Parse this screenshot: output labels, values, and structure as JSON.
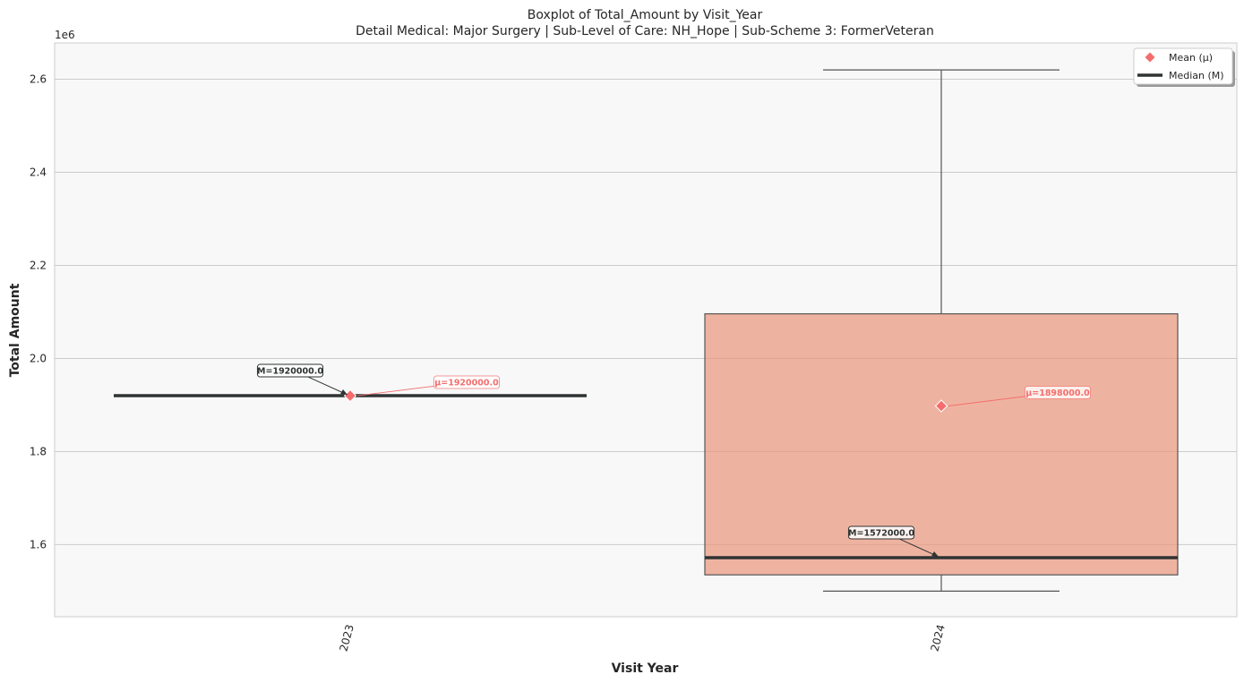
{
  "chart_data": {
    "type": "boxplot",
    "title": "Boxplot of Total_Amount by Visit_Year",
    "subtitle": "Detail Medical: Major Surgery | Sub-Level of Care: NH_Hope | Sub-Scheme 3: FormerVeteran",
    "xlabel": "Visit Year",
    "ylabel": "Total Amount",
    "y_offset_label": "1e6",
    "y_scale": 1000000,
    "ylim": [
      1445000,
      2678000
    ],
    "yticks": [
      1.6,
      1.8,
      2.0,
      2.2,
      2.4,
      2.6
    ],
    "grid": true,
    "legend_position": "top-right",
    "categories": [
      "2023",
      "2024"
    ],
    "boxes": [
      {
        "category": "2023",
        "min": 1920000,
        "q1": 1920000,
        "median": 1920000,
        "q3": 1920000,
        "max": 1920000,
        "mean": 1920000,
        "median_label": "M=1920000.0",
        "mean_label": "μ=1920000.0",
        "fill_color": "#eaeaea"
      },
      {
        "category": "2024",
        "min": 1500000,
        "q1": 1535000,
        "median": 1572000,
        "q3": 2096000,
        "max": 2620000,
        "mean": 1898000,
        "median_label": "M=1572000.0",
        "mean_label": "μ=1898000.0",
        "fill_color": "#e9967a"
      }
    ],
    "legend": [
      {
        "label": "Mean (μ)",
        "marker": "diamond",
        "color": "#f46d6d"
      },
      {
        "label": "Median (M)",
        "marker": "line",
        "color": "#2f3333"
      }
    ]
  },
  "colors": {
    "plot_bg": "#f8f8f8",
    "grid": "#cccccc",
    "median": "#2f3333",
    "mean": "#f46d6d",
    "whisker": "#555555",
    "text": "#262626"
  }
}
